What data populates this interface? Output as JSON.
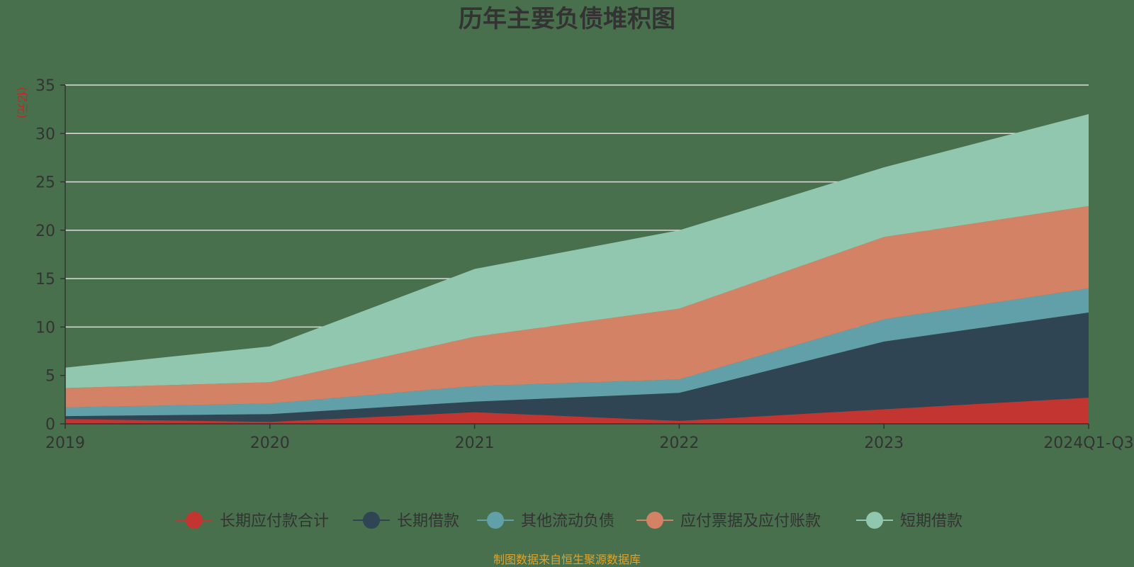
{
  "chart_data": {
    "type": "area",
    "stacked": true,
    "title": "历年主要负债堆积图",
    "ylabel": "(亿元)",
    "source": "制图数据来自恒生聚源数据库",
    "categories": [
      "2019",
      "2020",
      "2021",
      "2022",
      "2023",
      "2024Q1-Q3"
    ],
    "yticks": [
      0,
      5,
      10,
      15,
      20,
      25,
      30,
      35
    ],
    "ylim": [
      0,
      35
    ],
    "grid": true,
    "legend_position": "bottom",
    "series": [
      {
        "name": "长期应付款合计",
        "color": "#c23531",
        "values": [
          0.5,
          0.2,
          1.2,
          0.3,
          1.5,
          2.7
        ]
      },
      {
        "name": "长期借款",
        "color": "#2f4554",
        "values": [
          0.3,
          0.8,
          1.1,
          2.9,
          7.0,
          8.8
        ]
      },
      {
        "name": "其他流动负债",
        "color": "#61a0a8",
        "values": [
          0.9,
          1.1,
          1.6,
          1.4,
          2.3,
          2.5
        ]
      },
      {
        "name": "应付票据及应付账款",
        "color": "#d48265",
        "values": [
          2.0,
          2.2,
          5.1,
          7.3,
          8.5,
          8.5
        ]
      },
      {
        "name": "短期借款",
        "color": "#91c7ae",
        "values": [
          2.1,
          3.7,
          7.0,
          8.1,
          7.2,
          9.5
        ]
      }
    ]
  },
  "colors": {
    "background": "#48704d",
    "grid": "#dddddd",
    "axis": "#333333",
    "title": "#333333",
    "unit": "#cc2222",
    "source": "#e0a22a"
  }
}
